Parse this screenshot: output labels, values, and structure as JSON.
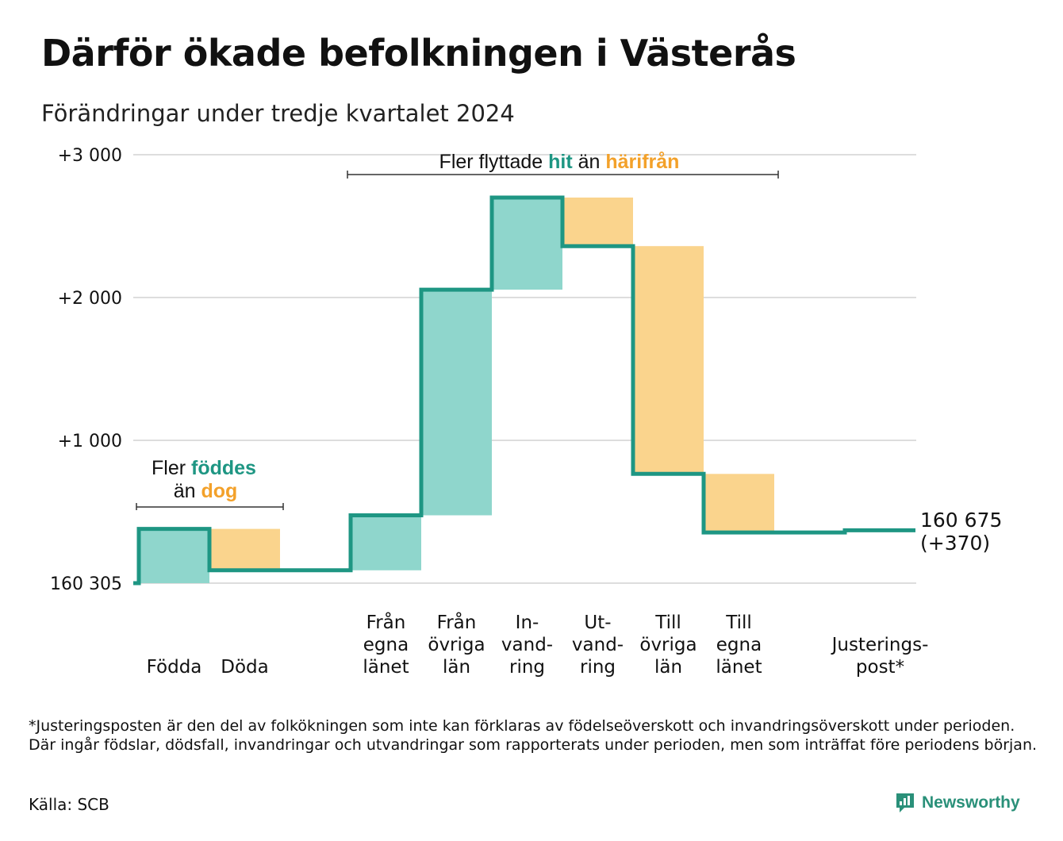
{
  "title": "Därför ökade befolkningen i Västerås",
  "subtitle": "Förändringar under tredje kvartalet 2024",
  "chart_data": {
    "type": "waterfall",
    "base_label": "160 305",
    "y_ticks": [
      {
        "value": 0,
        "label": "160 305"
      },
      {
        "value": 1000,
        "label": "+1 000"
      },
      {
        "value": 2000,
        "label": "+2 000"
      },
      {
        "value": 3000,
        "label": "+3 000"
      }
    ],
    "ylim": [
      0,
      3000
    ],
    "grid": true,
    "steps": [
      {
        "label": "Födda",
        "label_lines": [
          "Födda"
        ],
        "from": 0,
        "to": 380,
        "type": "inflow"
      },
      {
        "label": "Döda",
        "label_lines": [
          "Döda"
        ],
        "from": 380,
        "to": 90,
        "type": "outflow"
      },
      {
        "label": "",
        "label_lines": [],
        "from": 90,
        "to": 90,
        "type": "gap"
      },
      {
        "label": "Från egna länet",
        "label_lines": [
          "Från",
          "egna",
          "länet"
        ],
        "from": 90,
        "to": 475,
        "type": "inflow"
      },
      {
        "label": "Från övriga län",
        "label_lines": [
          "Från",
          "övriga",
          "län"
        ],
        "from": 475,
        "to": 2055,
        "type": "inflow"
      },
      {
        "label": "In-vandring",
        "label_lines": [
          "In-",
          "vand-",
          "ring"
        ],
        "from": 2055,
        "to": 2700,
        "type": "inflow"
      },
      {
        "label": "Ut-vandring",
        "label_lines": [
          "Ut-",
          "vand-",
          "ring"
        ],
        "from": 2700,
        "to": 2360,
        "type": "outflow"
      },
      {
        "label": "Till övriga län",
        "label_lines": [
          "Till",
          "övriga",
          "län"
        ],
        "from": 2360,
        "to": 765,
        "type": "outflow"
      },
      {
        "label": "Till egna länet",
        "label_lines": [
          "Till",
          "egna",
          "länet"
        ],
        "from": 765,
        "to": 355,
        "type": "outflow"
      },
      {
        "label": "",
        "label_lines": [],
        "from": 355,
        "to": 355,
        "type": "gap"
      },
      {
        "label": "Justerings-post*",
        "label_lines": [
          "Justerings-",
          "post*"
        ],
        "from": 355,
        "to": 370,
        "type": "adjustment"
      }
    ],
    "end_value": {
      "line1": "160 675",
      "line2": "(+370)"
    },
    "annotations": [
      {
        "id": "births",
        "parts": [
          {
            "text": "Fler ",
            "role": "plain"
          },
          {
            "text": "föddes",
            "role": "in"
          },
          {
            "text": "än ",
            "role": "plain"
          },
          {
            "text": "dog",
            "role": "out"
          }
        ]
      },
      {
        "id": "moves",
        "parts": [
          {
            "text": "Fler flyttade ",
            "role": "plain"
          },
          {
            "text": "hit",
            "role": "in"
          },
          {
            "text": " än ",
            "role": "plain"
          },
          {
            "text": "härifrån",
            "role": "out"
          }
        ]
      }
    ],
    "colors": {
      "line": "#1e9683",
      "inflow_fill": "#8fd6cc",
      "outflow_fill": "#fad48d",
      "in_text": "#1e9683",
      "out_text": "#f3a12a",
      "grid": "#dddddd"
    }
  },
  "footnote": "*Justeringsposten är den del av folkökningen som inte kan förklaras av födelseöverskott och invandringsöverskott under perioden. Där ingår födslar, dödsfall, invandringar och utvandringar som rapporterats under perioden, men som inträffat före periodens början.",
  "source": "Källa: SCB",
  "brand": {
    "name": "Newsworthy",
    "icon": "newsworthy-logo-icon"
  }
}
